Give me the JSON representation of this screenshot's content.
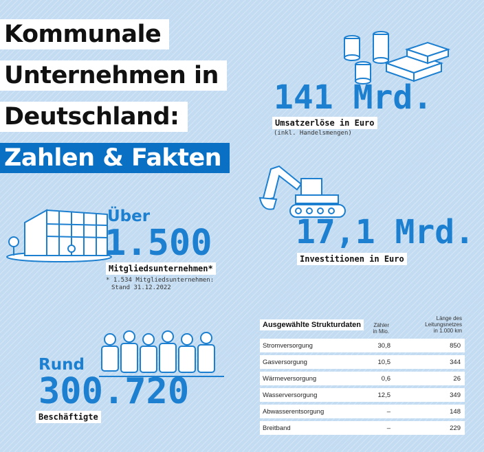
{
  "title": {
    "line1": "Kommunale",
    "line2": "Unternehmen in",
    "line3": "Deutschland:",
    "line4": "Zahlen & Fakten"
  },
  "revenue": {
    "value": "141 Mrd.",
    "label": "Umsatzerlöse in Euro",
    "note": "(inkl. Handelsmengen)"
  },
  "investments": {
    "value": "17,1 Mrd.",
    "label": "Investitionen in Euro"
  },
  "members": {
    "prefix": "Über",
    "value": "1.500",
    "label": "Mitgliedsunternehmen*",
    "note_line1": "* 1.534 Mitgliedsunternehmen:",
    "note_line2": "Stand 31.12.2022"
  },
  "employees": {
    "prefix": "Rund",
    "value": "300.720",
    "label": "Beschäftigte"
  },
  "table": {
    "title": "Ausgewählte Strukturdaten",
    "col1_line1": "Zähler",
    "col1_line2": "in Mio.",
    "col2_line1": "Länge des",
    "col2_line2": "Leitungsnetzes",
    "col2_line3": "in 1.000 km",
    "rows": [
      {
        "name": "Stromversorgung",
        "count": "30,8",
        "length": "850"
      },
      {
        "name": "Gasversorgung",
        "count": "10,5",
        "length": "344"
      },
      {
        "name": "Wärmeversorgung",
        "count": "0,6",
        "length": "26"
      },
      {
        "name": "Wasserversorgung",
        "count": "12,5",
        "length": "349"
      },
      {
        "name": "Abwasserentsorgung",
        "count": "–",
        "length": "148"
      },
      {
        "name": "Breitband",
        "count": "–",
        "length": "229"
      }
    ]
  },
  "icons": {
    "revenue": "coins-and-banknotes-icon",
    "investments": "excavator-icon",
    "members": "office-building-icon",
    "employees": "group-of-people-icon"
  },
  "colors": {
    "background": "#c4dcf2",
    "accent": "#1c7fcf",
    "title_banner": "#0a70c4"
  }
}
